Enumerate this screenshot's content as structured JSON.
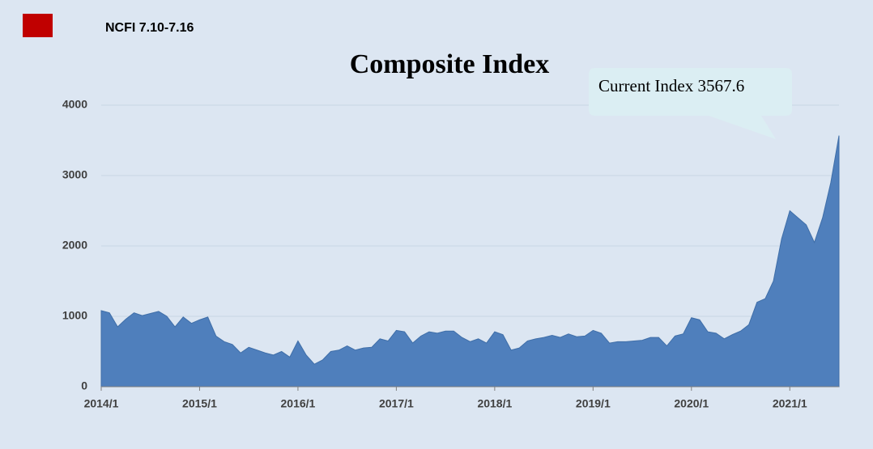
{
  "chart_data": {
    "type": "area",
    "title": "Composite Index",
    "legend": {
      "name": "NCFI 7.10-7.16",
      "color": "#c00000",
      "corner": "top-left"
    },
    "annotation": "Current Index 3567.6",
    "categories": [
      "2014/1",
      null,
      null,
      null,
      null,
      null,
      null,
      null,
      null,
      null,
      null,
      null,
      "2015/1",
      null,
      null,
      null,
      null,
      null,
      null,
      null,
      null,
      null,
      null,
      null,
      "2016/1",
      null,
      null,
      null,
      null,
      null,
      null,
      null,
      null,
      null,
      null,
      null,
      "2017/1",
      null,
      null,
      null,
      null,
      null,
      null,
      null,
      null,
      null,
      null,
      null,
      "2018/1",
      null,
      null,
      null,
      null,
      null,
      null,
      null,
      null,
      null,
      null,
      null,
      "2019/1",
      null,
      null,
      null,
      null,
      null,
      null,
      null,
      null,
      null,
      null,
      null,
      "2020/1",
      null,
      null,
      null,
      null,
      null,
      null,
      null,
      null,
      null,
      null,
      null,
      "2021/1",
      null,
      null,
      null,
      null,
      null,
      null
    ],
    "series": [
      {
        "color": "#4f7fbc",
        "values": [
          1080,
          1050,
          850,
          960,
          1050,
          1010,
          1040,
          1070,
          1000,
          850,
          990,
          900,
          950,
          990,
          720,
          640,
          600,
          480,
          560,
          520,
          480,
          450,
          500,
          420,
          650,
          450,
          320,
          380,
          500,
          520,
          580,
          520,
          550,
          560,
          680,
          650,
          800,
          780,
          620,
          720,
          780,
          760,
          790,
          790,
          700,
          640,
          680,
          620,
          780,
          740,
          520,
          550,
          650,
          680,
          700,
          730,
          700,
          750,
          710,
          720,
          800,
          760,
          620,
          640,
          640,
          650,
          660,
          700,
          700,
          580,
          720,
          750,
          980,
          950,
          780,
          760,
          680,
          740,
          790,
          880,
          1200,
          1250,
          1500,
          2100,
          2500,
          2400,
          2300,
          2050,
          2400,
          2900,
          3567.6
        ]
      }
    ],
    "ylim": [
      0,
      4000
    ],
    "yticks": [
      0,
      1000,
      2000,
      3000,
      4000
    ],
    "grid": true
  }
}
